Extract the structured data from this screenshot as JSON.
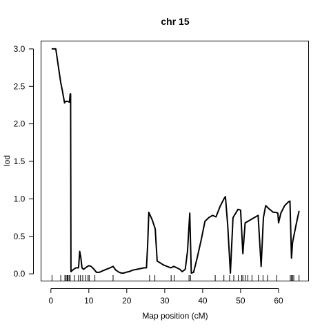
{
  "chart_data": {
    "type": "line",
    "title": "chr 15",
    "xlabel": "Map position (cM)",
    "ylabel": "lod",
    "xlim": [
      -2.5,
      68
    ],
    "ylim": [
      -0.1,
      3.1
    ],
    "xticks": [
      0,
      10,
      20,
      30,
      40,
      50,
      60
    ],
    "yticks": [
      0.0,
      0.5,
      1.0,
      1.5,
      2.0,
      2.5,
      3.0
    ],
    "xtick_labels": [
      "0",
      "10",
      "20",
      "30",
      "40",
      "50",
      "60"
    ],
    "ytick_labels": [
      "0.0",
      "0.5",
      "1.0",
      "1.5",
      "2.0",
      "2.5",
      "3.0"
    ],
    "grid": false,
    "series": [
      {
        "x": [
          0.2,
          1.3,
          2.6,
          3.0,
          3.6,
          3.9,
          4.4,
          4.9,
          5.1,
          5.2,
          5.3,
          5.5,
          6.0,
          6.6,
          7.3,
          7.6,
          7.9,
          8.2,
          8.6,
          9.4,
          10.0,
          10.6,
          11.4,
          12.0,
          12.8,
          13.6,
          14.6,
          15.6,
          16.4,
          17.1,
          18.0,
          18.6,
          19.2,
          19.8,
          20.6,
          21.6,
          22.6,
          23.6,
          24.6,
          25.2,
          25.5,
          25.8,
          26.7,
          27.5,
          28.0,
          28.7,
          29.6,
          30.6,
          31.6,
          32.4,
          33.2,
          34.0,
          34.6,
          35.4,
          36.0,
          36.6,
          37.0,
          37.6,
          38.5,
          39.6,
          40.6,
          41.6,
          42.6,
          43.5,
          44.6,
          45.6,
          46.0,
          46.6,
          47.3,
          48.0,
          48.6,
          49.3,
          50.0,
          50.6,
          51.2,
          51.9,
          52.6,
          53.6,
          54.6,
          55.4,
          56.0,
          56.6,
          57.4,
          58.6,
          59.2,
          59.8,
          60.0,
          60.6,
          61.6,
          62.6,
          63.0,
          63.4,
          63.7,
          64.2,
          64.8,
          65.4
        ],
        "y": [
          3.0,
          3.0,
          2.55,
          2.45,
          2.28,
          2.3,
          2.3,
          2.29,
          2.4,
          2.4,
          0.03,
          0.04,
          0.06,
          0.08,
          0.08,
          0.3,
          0.22,
          0.08,
          0.06,
          0.09,
          0.11,
          0.1,
          0.06,
          0.02,
          0.02,
          0.04,
          0.06,
          0.08,
          0.1,
          0.05,
          0.02,
          0.01,
          0.01,
          0.02,
          0.03,
          0.05,
          0.06,
          0.07,
          0.08,
          0.08,
          0.38,
          0.82,
          0.72,
          0.6,
          0.17,
          0.15,
          0.12,
          0.1,
          0.08,
          0.1,
          0.08,
          0.06,
          0.03,
          0.06,
          0.3,
          0.81,
          0.01,
          0.02,
          0.2,
          0.45,
          0.7,
          0.75,
          0.78,
          0.76,
          0.9,
          1.0,
          1.03,
          0.65,
          0.01,
          0.75,
          0.8,
          0.86,
          0.85,
          0.27,
          0.68,
          0.7,
          0.72,
          0.75,
          0.78,
          0.1,
          0.75,
          0.91,
          0.87,
          0.82,
          0.82,
          0.81,
          0.68,
          0.81,
          0.91,
          0.96,
          0.97,
          0.21,
          0.42,
          0.55,
          0.7,
          0.84
        ]
      }
    ],
    "markers": [
      0.3,
      2.6,
      3.7,
      4.0,
      4.3,
      4.5,
      4.8,
      5.1,
      6.2,
      7.3,
      7.8,
      8.4,
      9.2,
      9.8,
      10.1,
      11.6,
      16.4,
      26.0,
      27.4,
      31.7,
      32.5,
      36.4,
      36.8,
      43.3,
      45.6,
      47.1,
      48.2,
      49.4,
      50.3,
      50.6,
      51.2,
      51.9,
      53.0,
      54.7,
      55.9,
      57.1,
      59.5,
      63.1,
      63.4,
      63.7,
      64.0,
      65.4
    ]
  }
}
